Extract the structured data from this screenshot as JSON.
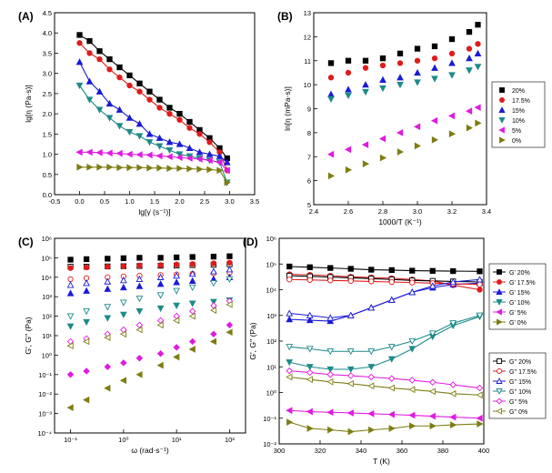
{
  "colors": {
    "p20": "#000000",
    "p17": "#e01b1b",
    "p15": "#1a1ad8",
    "p10": "#1e8a8a",
    "p5": "#e01be0",
    "p0": "#7d7d14"
  },
  "chart_data": [
    {
      "panel": "(A)",
      "type": "line",
      "xlabel": "lg[γ̇ (s⁻¹)]",
      "ylabel": "lg[η (Pa·s)]",
      "xlim": [
        -0.5,
        3.5
      ],
      "ylim": [
        0,
        4.5
      ],
      "xticks": [
        "-0.5",
        "0.0",
        "0.5",
        "1.0",
        "1.5",
        "2.0",
        "2.5",
        "3.0",
        "3.5"
      ],
      "yticks": [
        "0.0",
        "0.5",
        "1.0",
        "1.5",
        "2.0",
        "2.5",
        "3.0",
        "3.5",
        "4.0",
        "4.5"
      ],
      "x": [
        0.0,
        0.2,
        0.4,
        0.6,
        0.8,
        1.0,
        1.2,
        1.4,
        1.6,
        1.8,
        2.0,
        2.2,
        2.4,
        2.6,
        2.8,
        2.95
      ],
      "series": [
        {
          "name": "20%",
          "color": "p20",
          "marker": "square",
          "values": [
            3.95,
            3.8,
            3.55,
            3.35,
            3.15,
            2.95,
            2.75,
            2.55,
            2.35,
            2.15,
            2.0,
            1.8,
            1.6,
            1.4,
            1.15,
            0.9
          ]
        },
        {
          "name": "17.5%",
          "color": "p17",
          "marker": "circle",
          "values": [
            3.75,
            3.5,
            3.35,
            3.1,
            2.9,
            2.7,
            2.55,
            2.35,
            2.15,
            2.0,
            1.85,
            1.65,
            1.5,
            1.3,
            1.05,
            0.6
          ]
        },
        {
          "name": "15%",
          "color": "p15",
          "marker": "triangle-up",
          "values": [
            3.28,
            2.8,
            2.55,
            2.25,
            2.1,
            1.9,
            1.75,
            1.5,
            1.4,
            1.3,
            1.25,
            1.15,
            1.05,
            1.0,
            0.95,
            0.8
          ]
        },
        {
          "name": "10%",
          "color": "p10",
          "marker": "triangle-down",
          "values": [
            2.7,
            2.35,
            2.1,
            1.9,
            1.7,
            1.55,
            1.45,
            1.3,
            1.2,
            1.1,
            1.0,
            0.95,
            0.9,
            0.85,
            0.8,
            0.3
          ]
        },
        {
          "name": "5%",
          "color": "p5",
          "marker": "triangle-left",
          "values": [
            1.05,
            1.05,
            1.04,
            1.03,
            1.02,
            1.0,
            0.99,
            0.98,
            0.96,
            0.94,
            0.92,
            0.9,
            0.88,
            0.85,
            0.8,
            0.6
          ]
        },
        {
          "name": "0%",
          "color": "p0",
          "marker": "triangle-right",
          "values": [
            0.68,
            0.68,
            0.68,
            0.68,
            0.67,
            0.67,
            0.67,
            0.66,
            0.66,
            0.65,
            0.65,
            0.64,
            0.63,
            0.62,
            0.6,
            0.3
          ]
        }
      ]
    },
    {
      "panel": "(B)",
      "type": "scatter",
      "xlabel": "1000/T (K⁻¹)",
      "ylabel": "ln[η (mPa·s)]",
      "xlim": [
        2.4,
        3.4
      ],
      "ylim": [
        5,
        13
      ],
      "xticks": [
        "2.4",
        "2.6",
        "2.8",
        "3.0",
        "3.2",
        "3.4"
      ],
      "yticks": [
        "5",
        "6",
        "7",
        "8",
        "9",
        "10",
        "11",
        "12",
        "13"
      ],
      "x": [
        2.5,
        2.6,
        2.7,
        2.8,
        2.9,
        3.0,
        3.1,
        3.2,
        3.3,
        3.35
      ],
      "legend": "right",
      "series": [
        {
          "name": "20%",
          "color": "p20",
          "marker": "square",
          "values": [
            10.9,
            11.0,
            11.0,
            11.1,
            11.3,
            11.5,
            11.6,
            11.9,
            12.2,
            12.5
          ]
        },
        {
          "name": "17.5%",
          "color": "p17",
          "marker": "circle",
          "values": [
            10.3,
            10.5,
            10.7,
            10.8,
            10.9,
            11.0,
            11.1,
            11.3,
            11.5,
            11.7
          ]
        },
        {
          "name": "15%",
          "color": "p15",
          "marker": "triangle-up",
          "values": [
            9.6,
            9.8,
            10.0,
            10.2,
            10.3,
            10.5,
            10.7,
            10.9,
            11.1,
            11.3
          ]
        },
        {
          "name": "10%",
          "color": "p10",
          "marker": "triangle-down",
          "values": [
            9.4,
            9.55,
            9.7,
            9.85,
            10.0,
            10.1,
            10.25,
            10.4,
            10.6,
            10.75
          ]
        },
        {
          "name": "5%",
          "color": "p5",
          "marker": "triangle-left",
          "values": [
            7.1,
            7.3,
            7.5,
            7.75,
            8.0,
            8.25,
            8.5,
            8.7,
            8.9,
            9.05
          ]
        },
        {
          "name": "0%",
          "color": "p0",
          "marker": "triangle-right",
          "values": [
            6.2,
            6.45,
            6.7,
            6.95,
            7.2,
            7.45,
            7.7,
            7.95,
            8.2,
            8.4
          ]
        }
      ]
    },
    {
      "panel": "(C)",
      "type": "scatter",
      "xlabel": "ω (rad·s⁻¹)",
      "ylabel": "G', G'' (Pa)",
      "xscale": "log",
      "yscale": "log",
      "xlim": [
        0.05,
        200
      ],
      "ylim": [
        0.0001,
        1000000
      ],
      "xticks": [
        "10⁻¹",
        "10⁰",
        "10¹",
        "10²"
      ],
      "yticks": [
        "10⁻⁴",
        "10⁻³",
        "10⁻²",
        "10⁻¹",
        "10⁰",
        "10¹",
        "10²",
        "10³",
        "10⁴",
        "10⁵",
        "10⁶"
      ],
      "x": [
        0.1,
        0.2,
        0.5,
        1,
        2,
        5,
        10,
        20,
        50,
        100
      ],
      "series": [
        {
          "name": "G' 20%",
          "color": "p20",
          "marker": "square",
          "values": [
            80000,
            85000,
            90000,
            95000,
            100000,
            100000,
            105000,
            110000,
            115000,
            120000
          ]
        },
        {
          "name": "G'' 20%",
          "color": "p20",
          "marker": "square-open",
          "values": [
            35000,
            35000,
            36000,
            37000,
            38000,
            39000,
            40000,
            42000,
            44000,
            46000
          ]
        },
        {
          "name": "G' 17.5%",
          "color": "p17",
          "marker": "circle",
          "values": [
            30000,
            32000,
            35000,
            37000,
            40000,
            42000,
            45000,
            48000,
            52000,
            56000
          ]
        },
        {
          "name": "G'' 17.5%",
          "color": "p17",
          "marker": "circle-open",
          "values": [
            8000,
            9000,
            10000,
            11000,
            12000,
            13000,
            14000,
            15000,
            16000,
            17000
          ]
        },
        {
          "name": "G' 15%",
          "color": "p15",
          "marker": "triangle-up",
          "values": [
            1500,
            2000,
            2500,
            3000,
            3500,
            4500,
            5500,
            6500,
            8000,
            10000
          ]
        },
        {
          "name": "G'' 15%",
          "color": "p15",
          "marker": "triangle-up-open",
          "values": [
            4000,
            5000,
            6000,
            7000,
            8000,
            10000,
            12000,
            15000,
            20000,
            25000
          ]
        },
        {
          "name": "G' 10%",
          "color": "p10",
          "marker": "triangle-down",
          "values": [
            30,
            50,
            80,
            120,
            180,
            250,
            350,
            450,
            550,
            650
          ]
        },
        {
          "name": "G'' 10%",
          "color": "p10",
          "marker": "triangle-down-open",
          "values": [
            100,
            180,
            300,
            500,
            800,
            1200,
            2000,
            3000,
            5000,
            8000
          ]
        },
        {
          "name": "G' 5%",
          "color": "p5",
          "marker": "diamond",
          "values": [
            0.1,
            0.15,
            0.25,
            0.4,
            0.7,
            1.2,
            2.5,
            5,
            12,
            35
          ]
        },
        {
          "name": "G'' 5%",
          "color": "p5",
          "marker": "diamond-open",
          "values": [
            5,
            7,
            12,
            20,
            35,
            60,
            100,
            180,
            350,
            600
          ]
        },
        {
          "name": "G' 0%",
          "color": "p0",
          "marker": "triangle-left",
          "values": [
            0.002,
            0.005,
            0.02,
            0.05,
            0.1,
            0.3,
            0.8,
            2,
            5,
            15
          ]
        },
        {
          "name": "G'' 0%",
          "color": "p0",
          "marker": "triangle-left-open",
          "values": [
            3,
            5,
            8,
            12,
            20,
            35,
            60,
            100,
            200,
            400
          ]
        }
      ]
    },
    {
      "panel": "(D)",
      "type": "line",
      "xlabel": "T (K)",
      "ylabel": "G', G'' (Pa)",
      "yscale": "log",
      "xlim": [
        300,
        400
      ],
      "ylim": [
        0.01,
        1000000
      ],
      "xticks": [
        "300",
        "320",
        "340",
        "360",
        "380",
        "400"
      ],
      "yticks": [
        "10⁻²",
        "10⁻¹",
        "10⁰",
        "10¹",
        "10²",
        "10³",
        "10⁴",
        "10⁵",
        "10⁶"
      ],
      "x": [
        305,
        315,
        325,
        335,
        345,
        355,
        365,
        375,
        385,
        398
      ],
      "series": [
        {
          "name": "G' 20%",
          "color": "p20",
          "marker": "square",
          "values": [
            80000,
            75000,
            70000,
            65000,
            60000,
            58000,
            55000,
            54000,
            53000,
            52000
          ]
        },
        {
          "name": "G' 17.5%",
          "color": "p17",
          "marker": "circle",
          "values": [
            40000,
            38000,
            35000,
            32000,
            30000,
            28000,
            25000,
            22000,
            15000,
            10000
          ]
        },
        {
          "name": "G' 15%",
          "color": "p15",
          "marker": "triangle-up",
          "values": [
            700,
            650,
            600,
            1000,
            2000,
            4000,
            8000,
            12000,
            16000,
            18000
          ]
        },
        {
          "name": "G' 10%",
          "color": "p10",
          "marker": "triangle-down",
          "values": [
            15,
            10,
            8,
            8,
            10,
            20,
            50,
            150,
            400,
            900
          ]
        },
        {
          "name": "G' 5%",
          "color": "p5",
          "marker": "triangle-left",
          "values": [
            0.2,
            0.18,
            0.17,
            0.16,
            0.15,
            0.14,
            0.13,
            0.12,
            0.11,
            0.1
          ]
        },
        {
          "name": "G' 0%",
          "color": "p0",
          "marker": "triangle-right",
          "values": [
            0.07,
            0.04,
            0.035,
            0.03,
            0.035,
            0.04,
            0.05,
            0.05,
            0.055,
            0.06
          ]
        },
        {
          "name": "G'' 20%",
          "color": "p20",
          "marker": "square-open",
          "values": [
            35000,
            33000,
            31000,
            29000,
            27000,
            25000,
            23000,
            22000,
            21000,
            20000
          ]
        },
        {
          "name": "G'' 17.5%",
          "color": "p17",
          "marker": "circle-open",
          "values": [
            25000,
            24000,
            23000,
            22000,
            21000,
            20000,
            19000,
            18000,
            17000,
            16000
          ]
        },
        {
          "name": "G'' 15%",
          "color": "p15",
          "marker": "triangle-up-open",
          "values": [
            1200,
            1000,
            800,
            1000,
            2000,
            4000,
            8000,
            14000,
            20000,
            25000
          ]
        },
        {
          "name": "G'' 10%",
          "color": "p10",
          "marker": "triangle-down-open",
          "values": [
            60,
            50,
            40,
            40,
            40,
            60,
            100,
            200,
            500,
            1000
          ]
        },
        {
          "name": "G'' 5%",
          "color": "p5",
          "marker": "diamond-open",
          "values": [
            7,
            6,
            5,
            4.5,
            4,
            3.5,
            3,
            2.5,
            2,
            1.5
          ]
        },
        {
          "name": "G'' 0%",
          "color": "p0",
          "marker": "triangle-left-open",
          "values": [
            4,
            3.2,
            2.6,
            2.2,
            1.8,
            1.5,
            1.3,
            1.1,
            0.9,
            0.8
          ]
        }
      ],
      "legend_groups": [
        [
          "G' 20%",
          "G' 17.5%",
          "G' 15%",
          "G' 10%",
          "G' 5%",
          "G' 0%"
        ],
        [
          "G'' 20%",
          "G'' 17.5%",
          "G'' 15%",
          "G'' 10%",
          "G'' 5%",
          "G'' 0%"
        ]
      ]
    }
  ]
}
